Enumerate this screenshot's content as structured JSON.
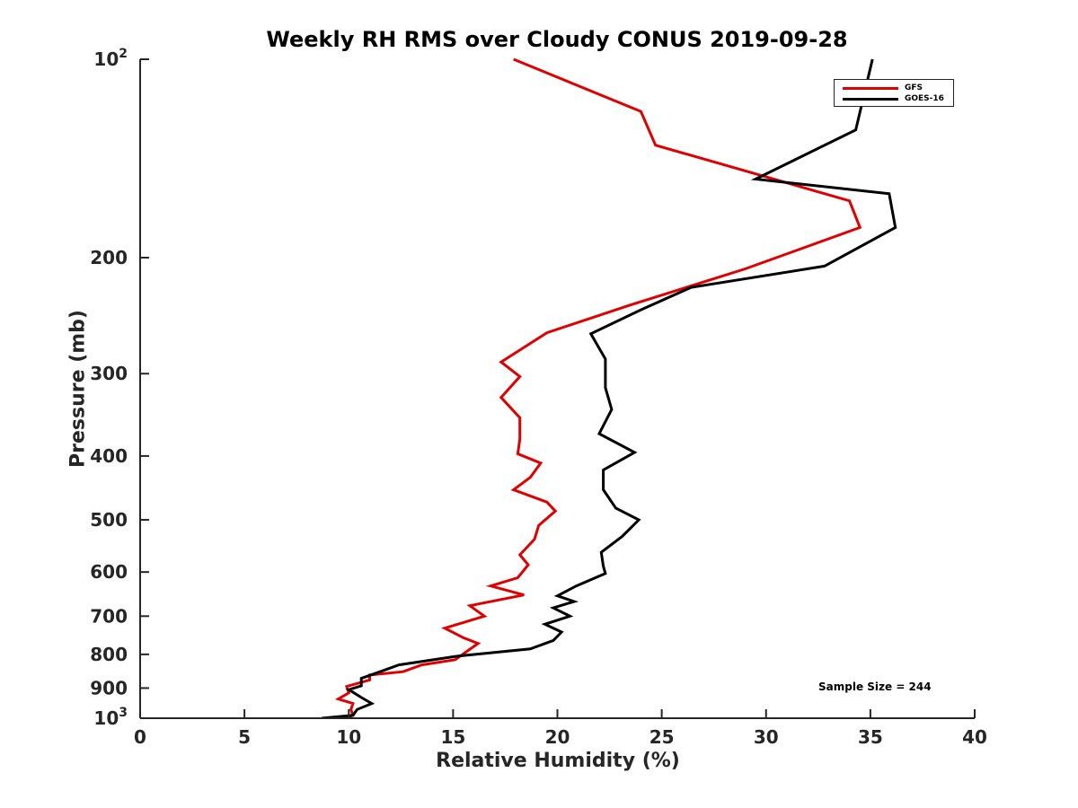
{
  "chart_data": {
    "type": "line",
    "title": "Weekly RH RMS over Cloudy CONUS 2019-09-28",
    "xlabel": "Relative Humidity (%)",
    "ylabel": "Pressure (mb)",
    "xlim": [
      0,
      40
    ],
    "ylim": [
      100,
      1000
    ],
    "yscale": "log",
    "y_reversed": true,
    "xticks": [
      0,
      5,
      10,
      15,
      20,
      25,
      30,
      35,
      40
    ],
    "xtick_labels": [
      "0",
      "5",
      "10",
      "15",
      "20",
      "25",
      "30",
      "35",
      "40"
    ],
    "yticks": [
      100,
      200,
      300,
      400,
      500,
      600,
      700,
      800,
      900,
      1000
    ],
    "ytick_labels": [
      "10^2",
      "200",
      "300",
      "400",
      "500",
      "600",
      "700",
      "800",
      "900",
      "10^3"
    ],
    "legend_position": "top-right",
    "annotation": "Sample Size = 244",
    "series": [
      {
        "name": "GFS",
        "color": "#e00000",
        "x": [
          17.9,
          24.0,
          24.7,
          34.0,
          34.5,
          29.0,
          23.5,
          19.5,
          17.3,
          18.2,
          17.3,
          18.2,
          18.2,
          18.1,
          19.2,
          18.7,
          17.9,
          19.5,
          19.9,
          19.1,
          18.9,
          18.2,
          18.6,
          18.1,
          16.8,
          18.4,
          15.8,
          16.5,
          14.6,
          15.5,
          16.2,
          15.7,
          15.1,
          13.5,
          12.6,
          11.0,
          11.0,
          9.9,
          10.0,
          9.5,
          10.2,
          10.1,
          10.2,
          9.8
        ],
        "y": [
          100,
          120,
          135,
          164,
          180,
          208,
          236,
          260,
          288,
          303,
          326,
          350,
          377,
          397,
          410,
          431,
          450,
          470,
          485,
          510,
          535,
          565,
          585,
          612,
          630,
          650,
          675,
          700,
          730,
          755,
          770,
          790,
          815,
          830,
          850,
          860,
          875,
          895,
          915,
          935,
          950,
          970,
          990,
          1000
        ]
      },
      {
        "name": "GOES-16",
        "color": "#000000",
        "x": [
          35.1,
          34.3,
          29.5,
          35.9,
          36.2,
          32.8,
          26.4,
          24.0,
          21.6,
          22.3,
          22.3,
          22.6,
          22.0,
          23.7,
          22.2,
          22.2,
          22.8,
          23.9,
          23.1,
          22.1,
          22.2,
          22.3,
          20.9,
          20.0,
          20.8,
          19.8,
          20.6,
          19.4,
          20.2,
          19.8,
          18.7,
          15.2,
          12.4,
          11.5,
          10.6,
          10.6,
          10.0,
          10.6,
          11.1,
          10.4,
          10.2,
          8.7
        ],
        "y": [
          100,
          128,
          152,
          160,
          180,
          206,
          222,
          240,
          261,
          285,
          315,
          340,
          370,
          395,
          420,
          450,
          480,
          500,
          530,
          560,
          588,
          603,
          630,
          652,
          665,
          680,
          700,
          720,
          740,
          762,
          785,
          805,
          830,
          850,
          870,
          893,
          905,
          930,
          950,
          970,
          990,
          1000
        ]
      }
    ]
  }
}
